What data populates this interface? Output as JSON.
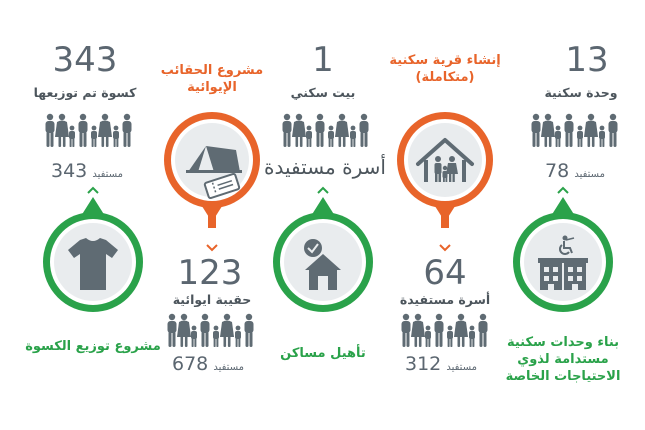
{
  "top": {
    "c1": {
      "number": "343",
      "label": "كسوة تم توزيعها",
      "benef_number": "343",
      "benef_word": "مستفيد"
    },
    "c2": {
      "title": "مشروع الحقائب الإيوائية"
    },
    "c3": {
      "number": "1",
      "label": "بيت سكني",
      "big_text": "أسرة مستفيدة"
    },
    "c4": {
      "title": "إنشاء قرية سكنية (متكاملة)"
    },
    "c5": {
      "number": "13",
      "label": "وحدة سكنية",
      "benef_number": "78",
      "benef_word": "مستفيد"
    }
  },
  "bottom": {
    "c1": {
      "title": "مشروع توزيع الكسوة"
    },
    "c2": {
      "number": "123",
      "label": "حقيبة ايوائية",
      "benef_number": "678",
      "benef_word": "مستفيد"
    },
    "c3": {
      "title": "تأهيل مساكن"
    },
    "c4": {
      "number": "64",
      "label": "أسرة مستفيدة",
      "benef_number": "312",
      "benef_word": "مستفيد"
    },
    "c5": {
      "title": "بناء وحدات سكنية مستدامة لذوي الاحتياجات الخاصة"
    }
  },
  "icons": {
    "c1": "t-shirt-icon",
    "c2": "tent-and-ticket-icon",
    "c3": "house-check-icon",
    "c4": "house-family-icon",
    "c5": "accessible-buildings-icon"
  },
  "colors": {
    "orange": "#e8642a",
    "green": "#2aa24a",
    "gray_text": "#5b6670",
    "icon_gray": "#5f6b73",
    "circle_fill": "#e9ecee"
  }
}
